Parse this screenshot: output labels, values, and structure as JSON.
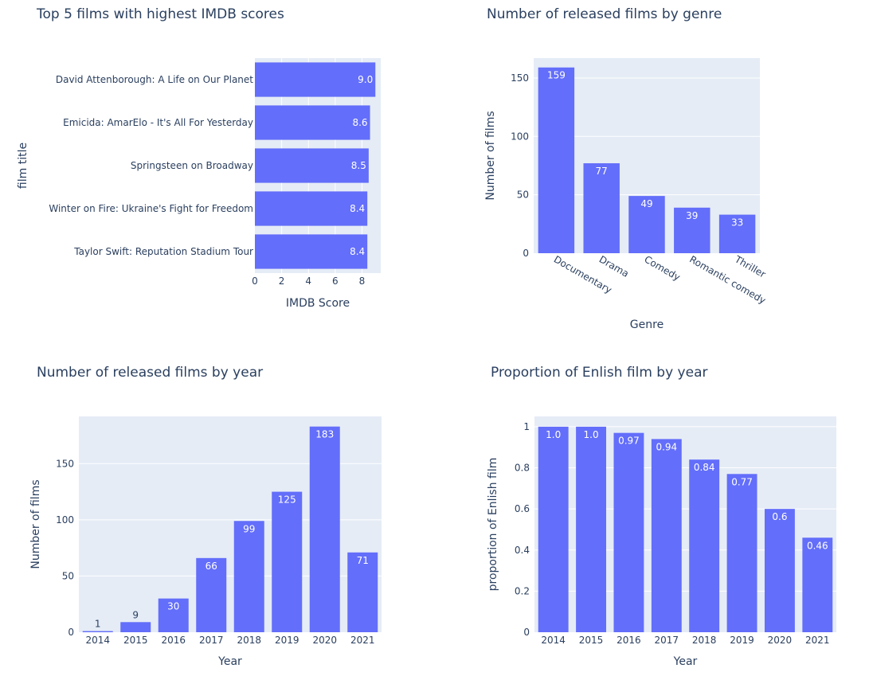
{
  "chart_data": [
    {
      "type": "bar",
      "orientation": "horizontal",
      "title": "Top 5 films with highest IMDB scores",
      "xlabel": "IMDB Score",
      "ylabel": "film title",
      "categories": [
        "David Attenborough: A Life on Our Planet",
        "Emicida: AmarElo - It's All For Yesterday",
        "Springsteen on Broadway",
        "Winter on Fire: Ukraine's Fight for Freedom",
        "Taylor Swift: Reputation Stadium Tour"
      ],
      "values": [
        9.0,
        8.6,
        8.5,
        8.4,
        8.4
      ],
      "value_labels": [
        "9.0",
        "8.6",
        "8.5",
        "8.4",
        "8.4"
      ],
      "xlim": [
        0,
        9.4
      ],
      "xticks": [
        0,
        2,
        4,
        6,
        8
      ],
      "grid": true,
      "bar_color": "#636efa",
      "plot_bg": "#e5ecf6"
    },
    {
      "type": "bar",
      "title": "Number of released films by genre",
      "xlabel": "Genre",
      "ylabel": "Number of films",
      "categories": [
        "Documentary",
        "Drama",
        "Comedy",
        "Romantic comedy",
        "Thriller"
      ],
      "values": [
        159,
        77,
        49,
        39,
        33
      ],
      "value_labels": [
        "159",
        "77",
        "49",
        "39",
        "33"
      ],
      "ylim": [
        0,
        167
      ],
      "yticks": [
        0,
        50,
        100,
        150
      ],
      "tick_angle": 30,
      "grid": true,
      "bar_color": "#636efa",
      "plot_bg": "#e5ecf6"
    },
    {
      "type": "bar",
      "title": "Number of released films by year",
      "xlabel": "Year",
      "ylabel": "Number of films",
      "categories": [
        "2014",
        "2015",
        "2016",
        "2017",
        "2018",
        "2019",
        "2020",
        "2021"
      ],
      "values": [
        1,
        9,
        30,
        66,
        99,
        125,
        183,
        71
      ],
      "value_labels": [
        "1",
        "9",
        "30",
        "66",
        "99",
        "125",
        "183",
        "71"
      ],
      "ylim": [
        0,
        192
      ],
      "yticks": [
        0,
        50,
        100,
        150
      ],
      "grid": true,
      "bar_color": "#636efa",
      "plot_bg": "#e5ecf6"
    },
    {
      "type": "bar",
      "title": "Proportion of Enlish film by year",
      "xlabel": "Year",
      "ylabel": "proportion of Enlish film",
      "categories": [
        "2014",
        "2015",
        "2016",
        "2017",
        "2018",
        "2019",
        "2020",
        "2021"
      ],
      "values": [
        1.0,
        1.0,
        0.97,
        0.94,
        0.84,
        0.77,
        0.6,
        0.46
      ],
      "value_labels": [
        "1.0",
        "1.0",
        "0.97",
        "0.94",
        "0.84",
        "0.77",
        "0.6",
        "0.46"
      ],
      "ylim": [
        0,
        1.05
      ],
      "yticks": [
        0,
        0.2,
        0.4,
        0.6,
        0.8,
        1
      ],
      "ytick_labels": [
        "0",
        "0.2",
        "0.4",
        "0.6",
        "0.8",
        "1"
      ],
      "grid": true,
      "bar_color": "#636efa",
      "plot_bg": "#e5ecf6"
    }
  ]
}
